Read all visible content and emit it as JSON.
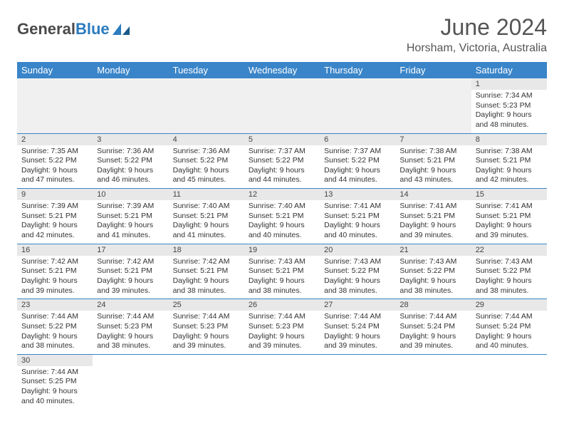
{
  "logo": {
    "text1": "General",
    "text2": "Blue"
  },
  "title": "June 2024",
  "location": "Horsham, Victoria, Australia",
  "header_bg": "#3a85c9",
  "day_headers": [
    "Sunday",
    "Monday",
    "Tuesday",
    "Wednesday",
    "Thursday",
    "Friday",
    "Saturday"
  ],
  "weeks": [
    [
      null,
      null,
      null,
      null,
      null,
      null,
      {
        "n": "1",
        "sunrise": "7:34 AM",
        "sunset": "5:23 PM",
        "daylight": "9 hours and 48 minutes."
      }
    ],
    [
      {
        "n": "2",
        "sunrise": "7:35 AM",
        "sunset": "5:22 PM",
        "daylight": "9 hours and 47 minutes."
      },
      {
        "n": "3",
        "sunrise": "7:36 AM",
        "sunset": "5:22 PM",
        "daylight": "9 hours and 46 minutes."
      },
      {
        "n": "4",
        "sunrise": "7:36 AM",
        "sunset": "5:22 PM",
        "daylight": "9 hours and 45 minutes."
      },
      {
        "n": "5",
        "sunrise": "7:37 AM",
        "sunset": "5:22 PM",
        "daylight": "9 hours and 44 minutes."
      },
      {
        "n": "6",
        "sunrise": "7:37 AM",
        "sunset": "5:22 PM",
        "daylight": "9 hours and 44 minutes."
      },
      {
        "n": "7",
        "sunrise": "7:38 AM",
        "sunset": "5:21 PM",
        "daylight": "9 hours and 43 minutes."
      },
      {
        "n": "8",
        "sunrise": "7:38 AM",
        "sunset": "5:21 PM",
        "daylight": "9 hours and 42 minutes."
      }
    ],
    [
      {
        "n": "9",
        "sunrise": "7:39 AM",
        "sunset": "5:21 PM",
        "daylight": "9 hours and 42 minutes."
      },
      {
        "n": "10",
        "sunrise": "7:39 AM",
        "sunset": "5:21 PM",
        "daylight": "9 hours and 41 minutes."
      },
      {
        "n": "11",
        "sunrise": "7:40 AM",
        "sunset": "5:21 PM",
        "daylight": "9 hours and 41 minutes."
      },
      {
        "n": "12",
        "sunrise": "7:40 AM",
        "sunset": "5:21 PM",
        "daylight": "9 hours and 40 minutes."
      },
      {
        "n": "13",
        "sunrise": "7:41 AM",
        "sunset": "5:21 PM",
        "daylight": "9 hours and 40 minutes."
      },
      {
        "n": "14",
        "sunrise": "7:41 AM",
        "sunset": "5:21 PM",
        "daylight": "9 hours and 39 minutes."
      },
      {
        "n": "15",
        "sunrise": "7:41 AM",
        "sunset": "5:21 PM",
        "daylight": "9 hours and 39 minutes."
      }
    ],
    [
      {
        "n": "16",
        "sunrise": "7:42 AM",
        "sunset": "5:21 PM",
        "daylight": "9 hours and 39 minutes."
      },
      {
        "n": "17",
        "sunrise": "7:42 AM",
        "sunset": "5:21 PM",
        "daylight": "9 hours and 39 minutes."
      },
      {
        "n": "18",
        "sunrise": "7:42 AM",
        "sunset": "5:21 PM",
        "daylight": "9 hours and 38 minutes."
      },
      {
        "n": "19",
        "sunrise": "7:43 AM",
        "sunset": "5:21 PM",
        "daylight": "9 hours and 38 minutes."
      },
      {
        "n": "20",
        "sunrise": "7:43 AM",
        "sunset": "5:22 PM",
        "daylight": "9 hours and 38 minutes."
      },
      {
        "n": "21",
        "sunrise": "7:43 AM",
        "sunset": "5:22 PM",
        "daylight": "9 hours and 38 minutes."
      },
      {
        "n": "22",
        "sunrise": "7:43 AM",
        "sunset": "5:22 PM",
        "daylight": "9 hours and 38 minutes."
      }
    ],
    [
      {
        "n": "23",
        "sunrise": "7:44 AM",
        "sunset": "5:22 PM",
        "daylight": "9 hours and 38 minutes."
      },
      {
        "n": "24",
        "sunrise": "7:44 AM",
        "sunset": "5:23 PM",
        "daylight": "9 hours and 38 minutes."
      },
      {
        "n": "25",
        "sunrise": "7:44 AM",
        "sunset": "5:23 PM",
        "daylight": "9 hours and 39 minutes."
      },
      {
        "n": "26",
        "sunrise": "7:44 AM",
        "sunset": "5:23 PM",
        "daylight": "9 hours and 39 minutes."
      },
      {
        "n": "27",
        "sunrise": "7:44 AM",
        "sunset": "5:24 PM",
        "daylight": "9 hours and 39 minutes."
      },
      {
        "n": "28",
        "sunrise": "7:44 AM",
        "sunset": "5:24 PM",
        "daylight": "9 hours and 39 minutes."
      },
      {
        "n": "29",
        "sunrise": "7:44 AM",
        "sunset": "5:24 PM",
        "daylight": "9 hours and 40 minutes."
      }
    ],
    [
      {
        "n": "30",
        "sunrise": "7:44 AM",
        "sunset": "5:25 PM",
        "daylight": "9 hours and 40 minutes."
      },
      null,
      null,
      null,
      null,
      null,
      null
    ]
  ],
  "labels": {
    "sunrise": "Sunrise:",
    "sunset": "Sunset:",
    "daylight": "Daylight:"
  }
}
